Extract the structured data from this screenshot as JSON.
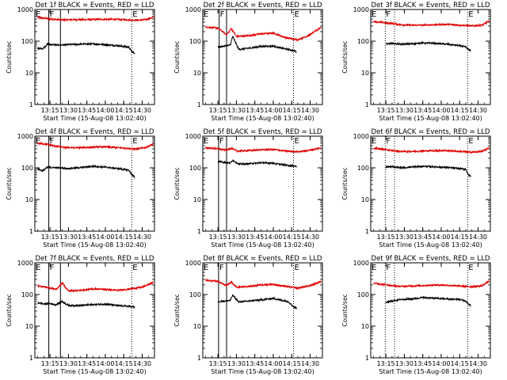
{
  "figure": {
    "colors": {
      "events": "#000000",
      "lld": "#e00000",
      "axes": "#000000"
    }
  },
  "chart_data": [
    {
      "type": "line",
      "title": "Det 1f BLACK = Events, RED = LLD",
      "xlabel": "Start Time (15-Aug-08 13:02:40)",
      "ylabel": "Counts/sec",
      "y_scale": "log",
      "ylim": [
        1,
        1000
      ],
      "y_ticks": [
        "1",
        "10",
        "100",
        "1000"
      ],
      "x_ticks": [
        "13:15",
        "13:30",
        "13:45",
        "14:00",
        "14:15",
        "14:30"
      ],
      "xlim": [
        "13:02:40",
        "14:40:00"
      ],
      "markers": [
        {
          "label": "E",
          "time": "13:02:40",
          "style": "dotted"
        },
        {
          "label": "F",
          "time": "13:14:00",
          "style": "solid"
        },
        {
          "label": "",
          "time": "13:23:30",
          "style": "solid"
        },
        {
          "label": "E",
          "time": "14:21:30",
          "style": "dotted"
        }
      ],
      "series": [
        {
          "color": "#e00000",
          "times": [
            "13:05",
            "13:12",
            "13:20",
            "13:27",
            "13:35",
            "13:45",
            "13:55",
            "14:05",
            "14:15",
            "14:25",
            "14:33",
            "14:39"
          ],
          "values": [
            560,
            520,
            480,
            470,
            480,
            480,
            490,
            490,
            480,
            460,
            480,
            560
          ]
        },
        {
          "color": "#000000",
          "times": [
            "13:05",
            "13:09",
            "13:13",
            "13:22",
            "13:30",
            "13:40",
            "13:50",
            "14:00",
            "14:10",
            "14:19",
            "14:22",
            "14:24"
          ],
          "values": [
            60,
            58,
            80,
            75,
            78,
            80,
            82,
            78,
            72,
            65,
            45,
            42
          ]
        }
      ]
    },
    {
      "type": "line",
      "title": "Det 2f BLACK = Events, RED = LLD",
      "xlabel": "Start Time (15-Aug-08 13:02:40)",
      "ylabel": "Counts/sec",
      "y_scale": "log",
      "ylim": [
        1,
        1000
      ],
      "y_ticks": [
        "1",
        "10",
        "100",
        "1000"
      ],
      "x_ticks": [
        "13:15",
        "13:30",
        "13:45",
        "14:00",
        "14:15",
        "14:30"
      ],
      "xlim": [
        "13:02:40",
        "14:40:00"
      ],
      "markers": [
        {
          "label": "E",
          "time": "13:02:40",
          "style": "dotted"
        },
        {
          "label": "F",
          "time": "13:16:00",
          "style": "solid"
        },
        {
          "label": "",
          "time": "13:22:00",
          "style": "solid"
        },
        {
          "label": "E",
          "time": "14:16:30",
          "style": "dotted"
        }
      ],
      "series": [
        {
          "color": "#e00000",
          "times": [
            "13:05",
            "13:15",
            "13:22",
            "13:26",
            "13:30",
            "13:40",
            "13:50",
            "14:00",
            "14:10",
            "14:20",
            "14:30",
            "14:39"
          ],
          "values": [
            280,
            260,
            160,
            250,
            140,
            150,
            170,
            180,
            130,
            110,
            160,
            280
          ]
        },
        {
          "color": "#000000",
          "times": [
            "13:15",
            "13:20",
            "13:25",
            "13:27",
            "13:32",
            "13:40",
            "13:50",
            "14:00",
            "14:05",
            "14:12",
            "14:17",
            "14:19"
          ],
          "values": [
            65,
            70,
            75,
            140,
            55,
            60,
            68,
            70,
            62,
            55,
            50,
            45
          ]
        }
      ]
    },
    {
      "type": "line",
      "title": "Det 3f BLACK = Events, RED = LLD",
      "xlabel": "Start Time (15-Aug-08 13:02:40)",
      "ylabel": "Counts/sec",
      "y_scale": "log",
      "ylim": [
        1,
        1000
      ],
      "y_ticks": [
        "1",
        "10",
        "100",
        "1000"
      ],
      "x_ticks": [
        "13:15",
        "13:30",
        "13:45",
        "14:00",
        "14:15",
        "14:30"
      ],
      "xlim": [
        "13:02:40",
        "14:40:00"
      ],
      "markers": [
        {
          "label": "E",
          "time": "13:02:40",
          "style": "dotted"
        },
        {
          "label": "F",
          "time": "13:14:30",
          "style": "dotted"
        },
        {
          "label": "",
          "time": "13:22:00",
          "style": "dotted"
        },
        {
          "label": "E",
          "time": "14:21:30",
          "style": "dotted"
        }
      ],
      "series": [
        {
          "color": "#e00000",
          "times": [
            "13:05",
            "13:12",
            "13:20",
            "13:27",
            "13:35",
            "13:45",
            "13:55",
            "14:05",
            "14:15",
            "14:25",
            "14:33",
            "14:39"
          ],
          "values": [
            420,
            390,
            360,
            330,
            320,
            320,
            330,
            340,
            320,
            300,
            320,
            430
          ]
        },
        {
          "color": "#000000",
          "times": [
            "13:15",
            "13:20",
            "13:27",
            "13:35",
            "13:45",
            "13:55",
            "14:05",
            "14:15",
            "14:20",
            "14:22",
            "14:24"
          ],
          "values": [
            82,
            85,
            80,
            82,
            88,
            85,
            80,
            72,
            65,
            55,
            50
          ]
        }
      ]
    },
    {
      "type": "line",
      "title": "Det 4f BLACK = Events, RED = LLD",
      "xlabel": "Start Time (15-Aug-08 13:02:40)",
      "ylabel": "Counts/sec",
      "y_scale": "log",
      "ylim": [
        1,
        1000
      ],
      "y_ticks": [
        "1",
        "10",
        "100",
        "1000"
      ],
      "x_ticks": [
        "13:15",
        "13:30",
        "13:45",
        "14:00",
        "14:15",
        "14:30"
      ],
      "xlim": [
        "13:02:40",
        "14:40:00"
      ],
      "markers": [
        {
          "label": "E",
          "time": "13:02:40",
          "style": "dotted"
        },
        {
          "label": "F",
          "time": "13:14:00",
          "style": "solid"
        },
        {
          "label": "",
          "time": "13:23:30",
          "style": "solid"
        },
        {
          "label": "E",
          "time": "14:21:30",
          "style": "dotted"
        }
      ],
      "series": [
        {
          "color": "#e00000",
          "times": [
            "13:05",
            "13:12",
            "13:20",
            "13:27",
            "13:35",
            "13:45",
            "13:55",
            "14:05",
            "14:15",
            "14:25",
            "14:33",
            "14:39"
          ],
          "values": [
            600,
            560,
            480,
            440,
            430,
            440,
            460,
            450,
            420,
            400,
            430,
            580
          ]
        },
        {
          "color": "#000000",
          "times": [
            "13:05",
            "13:09",
            "13:13",
            "13:22",
            "13:30",
            "13:40",
            "13:50",
            "14:00",
            "14:10",
            "14:19",
            "14:22",
            "14:24"
          ],
          "values": [
            92,
            80,
            105,
            100,
            95,
            102,
            112,
            105,
            95,
            85,
            58,
            50
          ]
        }
      ]
    },
    {
      "type": "line",
      "title": "Det 5f BLACK = Events, RED = LLD",
      "xlabel": "Start Time (15-Aug-08 13:02:40)",
      "ylabel": "Counts/sec",
      "y_scale": "log",
      "ylim": [
        1,
        1000
      ],
      "y_ticks": [
        "1",
        "10",
        "100",
        "1000"
      ],
      "x_ticks": [
        "13:15",
        "13:30",
        "13:45",
        "14:00",
        "14:15",
        "14:30"
      ],
      "xlim": [
        "13:02:40",
        "14:40:00"
      ],
      "markers": [
        {
          "label": "E",
          "time": "13:02:40",
          "style": "dotted"
        },
        {
          "label": "F",
          "time": "13:15:30",
          "style": "solid"
        },
        {
          "label": "",
          "time": "13:22:00",
          "style": "solid"
        },
        {
          "label": "E",
          "time": "14:16:30",
          "style": "dotted"
        }
      ],
      "series": [
        {
          "color": "#e00000",
          "times": [
            "13:05",
            "13:15",
            "13:22",
            "13:26",
            "13:30",
            "13:40",
            "13:50",
            "14:00",
            "14:10",
            "14:20",
            "14:30",
            "14:39"
          ],
          "values": [
            430,
            400,
            360,
            420,
            340,
            350,
            370,
            380,
            340,
            320,
            360,
            430
          ]
        },
        {
          "color": "#000000",
          "times": [
            "13:15",
            "13:20",
            "13:25",
            "13:27",
            "13:32",
            "13:40",
            "13:50",
            "14:00",
            "14:05",
            "14:12",
            "14:17",
            "14:19"
          ],
          "values": [
            160,
            150,
            140,
            175,
            130,
            135,
            145,
            140,
            130,
            120,
            115,
            110
          ]
        }
      ]
    },
    {
      "type": "line",
      "title": "Det 6f BLACK = Events, RED = LLD",
      "xlabel": "Start Time (15-Aug-08 13:02:40)",
      "ylabel": "Counts/sec",
      "y_scale": "log",
      "ylim": [
        1,
        1000
      ],
      "y_ticks": [
        "1",
        "10",
        "100",
        "1000"
      ],
      "x_ticks": [
        "13:15",
        "13:30",
        "13:45",
        "14:00",
        "14:15",
        "14:30"
      ],
      "xlim": [
        "13:02:40",
        "14:40:00"
      ],
      "markers": [
        {
          "label": "E",
          "time": "13:02:40",
          "style": "dotted"
        },
        {
          "label": "F",
          "time": "13:14:30",
          "style": "dotted"
        },
        {
          "label": "",
          "time": "13:22:00",
          "style": "dotted"
        },
        {
          "label": "E",
          "time": "14:21:30",
          "style": "dotted"
        }
      ],
      "series": [
        {
          "color": "#e00000",
          "times": [
            "13:05",
            "13:12",
            "13:20",
            "13:27",
            "13:35",
            "13:45",
            "13:55",
            "14:05",
            "14:15",
            "14:25",
            "14:33",
            "14:39"
          ],
          "values": [
            420,
            390,
            350,
            330,
            330,
            340,
            350,
            350,
            330,
            310,
            330,
            430
          ]
        },
        {
          "color": "#000000",
          "times": [
            "13:15",
            "13:20",
            "13:27",
            "13:35",
            "13:45",
            "13:55",
            "14:05",
            "14:15",
            "14:20",
            "14:22",
            "14:24"
          ],
          "values": [
            105,
            110,
            100,
            105,
            112,
            108,
            102,
            95,
            90,
            60,
            55
          ]
        }
      ]
    },
    {
      "type": "line",
      "title": "Det 7f BLACK = Events, RED = LLD",
      "xlabel": "Start Time (15-Aug-08 13:02:40)",
      "ylabel": "Counts/sec",
      "y_scale": "log",
      "ylim": [
        1,
        1000
      ],
      "y_ticks": [
        "1",
        "10",
        "100",
        "1000"
      ],
      "x_ticks": [
        "13:15",
        "13:30",
        "13:45",
        "14:00",
        "14:15",
        "14:30"
      ],
      "xlim": [
        "13:02:40",
        "14:40:00"
      ],
      "markers": [
        {
          "label": "E",
          "time": "13:02:40",
          "style": "dotted"
        },
        {
          "label": "F",
          "time": "13:14:00",
          "style": "solid"
        },
        {
          "label": "",
          "time": "13:23:30",
          "style": "solid"
        },
        {
          "label": "E",
          "time": "14:21:30",
          "style": "dotted"
        }
      ],
      "series": [
        {
          "color": "#e00000",
          "times": [
            "13:05",
            "13:12",
            "13:20",
            "13:25",
            "13:30",
            "13:40",
            "13:50",
            "14:00",
            "14:10",
            "14:20",
            "14:30",
            "14:39"
          ],
          "values": [
            190,
            170,
            145,
            230,
            130,
            135,
            150,
            145,
            135,
            150,
            170,
            240
          ]
        },
        {
          "color": "#000000",
          "times": [
            "13:05",
            "13:10",
            "13:14",
            "13:20",
            "13:25",
            "13:30",
            "13:40",
            "13:50",
            "14:00",
            "14:10",
            "14:20",
            "14:24"
          ],
          "values": [
            55,
            50,
            52,
            48,
            60,
            45,
            45,
            48,
            50,
            45,
            42,
            40
          ]
        }
      ]
    },
    {
      "type": "line",
      "title": "Det 8f BLACK = Events, RED = LLD",
      "xlabel": "Start Time (15-Aug-08 13:02:40)",
      "ylabel": "Counts/sec",
      "y_scale": "log",
      "ylim": [
        1,
        1000
      ],
      "y_ticks": [
        "1",
        "10",
        "100",
        "1000"
      ],
      "x_ticks": [
        "13:15",
        "13:30",
        "13:45",
        "14:00",
        "14:15",
        "14:30"
      ],
      "xlim": [
        "13:02:40",
        "14:40:00"
      ],
      "markers": [
        {
          "label": "E",
          "time": "13:02:40",
          "style": "dotted"
        },
        {
          "label": "F",
          "time": "13:15:30",
          "style": "solid"
        },
        {
          "label": "",
          "time": "13:22:00",
          "style": "solid"
        },
        {
          "label": "E",
          "time": "14:16:30",
          "style": "dotted"
        }
      ],
      "series": [
        {
          "color": "#e00000",
          "times": [
            "13:05",
            "13:15",
            "13:22",
            "13:26",
            "13:30",
            "13:40",
            "13:50",
            "14:00",
            "14:10",
            "14:20",
            "14:30",
            "14:39"
          ],
          "values": [
            280,
            260,
            190,
            250,
            170,
            180,
            200,
            210,
            180,
            160,
            190,
            260
          ]
        },
        {
          "color": "#000000",
          "times": [
            "13:15",
            "13:20",
            "13:25",
            "13:27",
            "13:32",
            "13:40",
            "13:50",
            "14:00",
            "14:05",
            "14:12",
            "14:17",
            "14:19"
          ],
          "values": [
            60,
            62,
            65,
            95,
            58,
            62,
            68,
            75,
            68,
            60,
            40,
            38
          ]
        }
      ]
    },
    {
      "type": "line",
      "title": "Det 9f BLACK = Events, RED = LLD",
      "xlabel": "Start Time (15-Aug-08 13:02:40)",
      "ylabel": "Counts/sec",
      "y_scale": "log",
      "ylim": [
        1,
        1000
      ],
      "y_ticks": [
        "1",
        "10",
        "100",
        "1000"
      ],
      "x_ticks": [
        "13:15",
        "13:30",
        "13:45",
        "14:00",
        "14:15",
        "14:30"
      ],
      "xlim": [
        "13:02:40",
        "14:40:00"
      ],
      "markers": [
        {
          "label": "E",
          "time": "13:02:40",
          "style": "dotted"
        },
        {
          "label": "F",
          "time": "13:14:30",
          "style": "dotted"
        },
        {
          "label": "",
          "time": "13:22:00",
          "style": "dotted"
        },
        {
          "label": "E",
          "time": "14:21:30",
          "style": "dotted"
        }
      ],
      "series": [
        {
          "color": "#e00000",
          "times": [
            "13:05",
            "13:12",
            "13:20",
            "13:27",
            "13:35",
            "13:45",
            "13:55",
            "14:05",
            "14:15",
            "14:25",
            "14:33",
            "14:39"
          ],
          "values": [
            230,
            210,
            190,
            180,
            185,
            190,
            200,
            195,
            185,
            175,
            190,
            260
          ]
        },
        {
          "color": "#000000",
          "times": [
            "13:15",
            "13:20",
            "13:27",
            "13:35",
            "13:45",
            "13:55",
            "14:05",
            "14:15",
            "14:20",
            "14:22",
            "14:24"
          ],
          "values": [
            55,
            62,
            70,
            72,
            80,
            76,
            72,
            70,
            62,
            50,
            45
          ]
        }
      ]
    }
  ]
}
